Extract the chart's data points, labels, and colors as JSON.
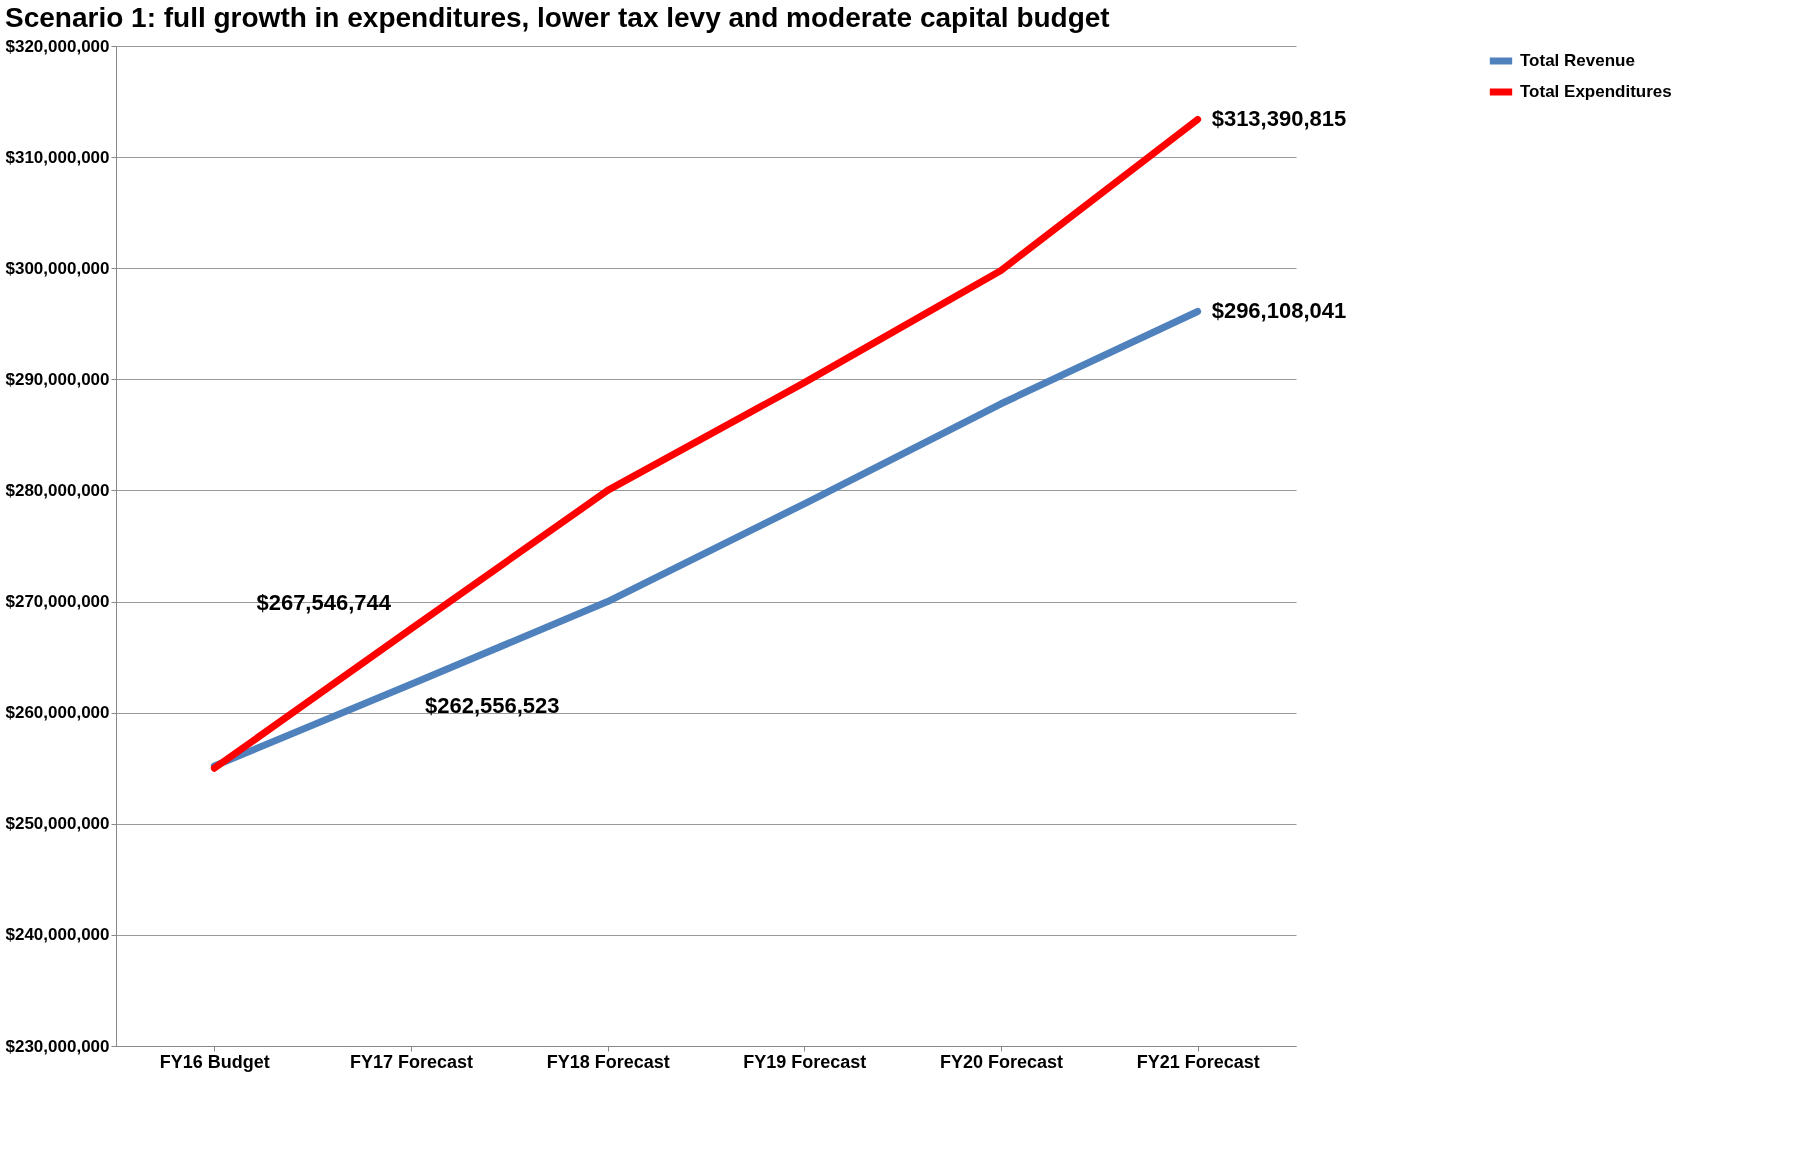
{
  "chart_data": {
    "type": "line",
    "title": "Scenario 1: full growth in expenditures, lower tax levy and moderate capital budget",
    "categories": [
      "FY16 Budget",
      "FY17 Forecast",
      "FY18 Forecast",
      "FY19 Forecast",
      "FY20 Forecast",
      "FY21 Forecast"
    ],
    "series": [
      {
        "name": "Total Revenue",
        "color": "#4f81bd",
        "values": [
          255200000,
          262556523,
          270000000,
          278800000,
          287800000,
          296108041
        ],
        "value_labels": [
          null,
          "$262,556,523",
          null,
          null,
          null,
          "$296,108,041"
        ]
      },
      {
        "name": "Total Expenditures",
        "color": "#ff0000",
        "values": [
          255000000,
          267546744,
          280000000,
          289700000,
          299800000,
          313390815
        ],
        "value_labels": [
          null,
          "$267,546,744",
          null,
          null,
          null,
          "$313,390,815"
        ]
      }
    ],
    "ylim": [
      230000000,
      320000000
    ],
    "yticks": [
      {
        "value": 230000000,
        "label": "$230,000,000"
      },
      {
        "value": 240000000,
        "label": "$240,000,000"
      },
      {
        "value": 250000000,
        "label": "$250,000,000"
      },
      {
        "value": 260000000,
        "label": "$260,000,000"
      },
      {
        "value": 270000000,
        "label": "$270,000,000"
      },
      {
        "value": 280000000,
        "label": "$280,000,000"
      },
      {
        "value": 290000000,
        "label": "$290,000,000"
      },
      {
        "value": 300000000,
        "label": "$300,000,000"
      },
      {
        "value": 310000000,
        "label": "$310,000,000"
      },
      {
        "value": 320000000,
        "label": "$320,000,000"
      }
    ],
    "grid": "y",
    "legend": "right",
    "marker": "none",
    "line_style": "solid"
  }
}
